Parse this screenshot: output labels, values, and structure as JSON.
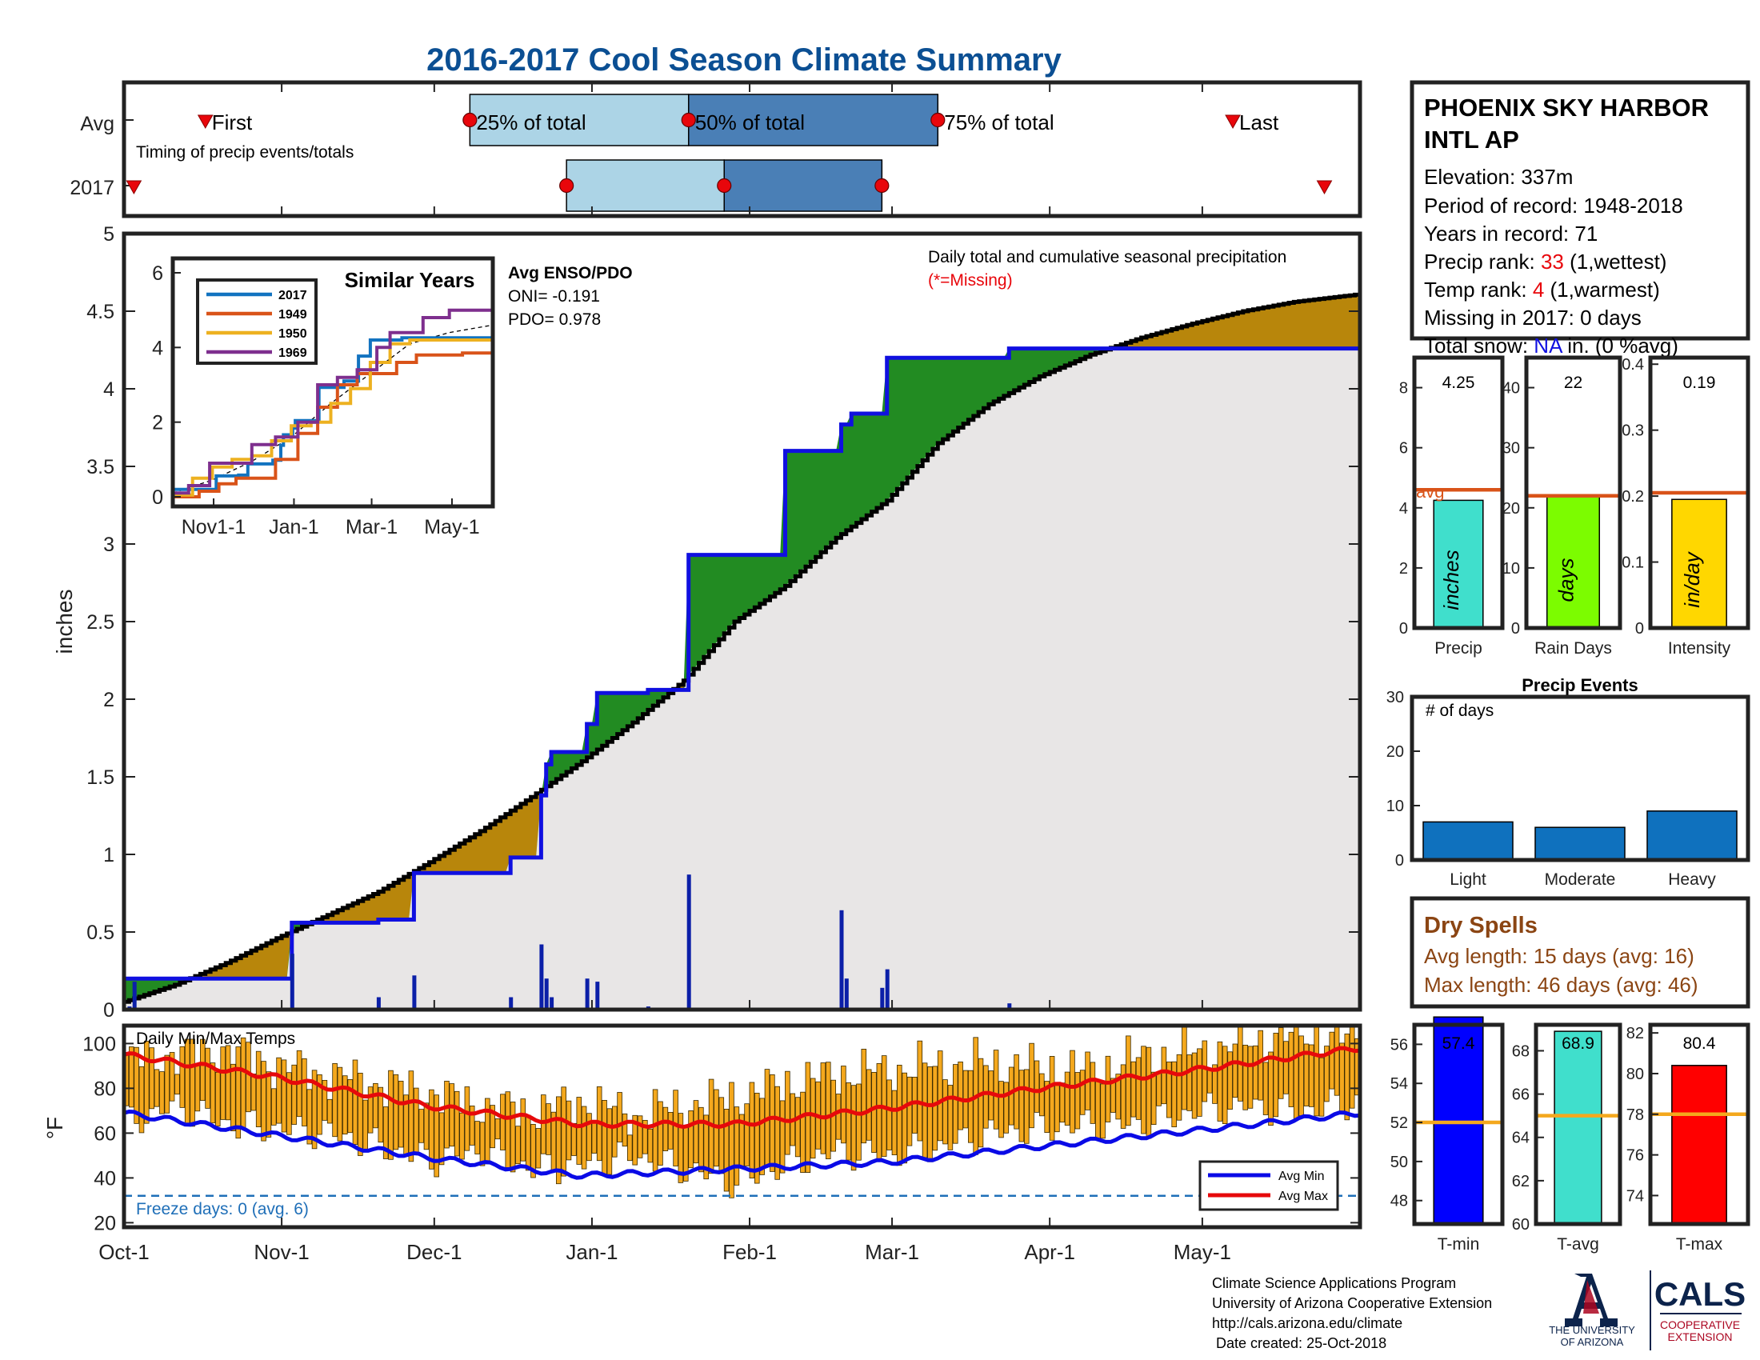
{
  "page": {
    "title": "2016-2017 Cool Season Climate Summary",
    "title_color": "#0b4f93"
  },
  "months": [
    "Oct-1",
    "Nov-1",
    "Dec-1",
    "Jan-1",
    "Feb-1",
    "Mar-1",
    "Apr-1",
    "May-1"
  ],
  "timing": {
    "note": "Timing of precip events/totals",
    "rows": [
      "Avg",
      "2017"
    ],
    "avg_labels": {
      "first": "First",
      "p25": "25% of total",
      "p50": "50% of total",
      "p75": "75% of total",
      "last": "Last"
    },
    "avg_days": {
      "first": 16,
      "p25": 68,
      "p50": 111,
      "p75": 160,
      "last": 218
    },
    "y2017_days": {
      "first": 1,
      "p25": 87,
      "p50": 118,
      "p75": 149,
      "last": 236
    },
    "colors": {
      "light": "#acd4e6",
      "dark": "#4a7fb6",
      "dot": "#e8060b"
    }
  },
  "chart_data": [
    {
      "type": "area",
      "name": "cumulative precipitation",
      "title": "Daily total and cumulative seasonal precipitation",
      "subtitle": "(*=Missing)",
      "ylabel": "inches",
      "ylim": [
        0,
        5
      ],
      "yticks": [
        0,
        0.5,
        1,
        1.5,
        2,
        2.5,
        3,
        3.5,
        4,
        4.5,
        5
      ],
      "xlim_days": [
        0,
        243
      ],
      "avg_cumulative": {
        "x_days": [
          0,
          10,
          20,
          30,
          40,
          50,
          60,
          70,
          80,
          90,
          100,
          110,
          120,
          130,
          140,
          150,
          160,
          170,
          180,
          190,
          200,
          210,
          220,
          230,
          243
        ],
        "values": [
          0.05,
          0.16,
          0.3,
          0.46,
          0.61,
          0.76,
          0.95,
          1.15,
          1.37,
          1.6,
          1.85,
          2.12,
          2.5,
          2.73,
          3.04,
          3.28,
          3.65,
          3.9,
          4.08,
          4.22,
          4.33,
          4.42,
          4.5,
          4.56,
          4.61
        ]
      },
      "cum_2017": {
        "x_days": [
          0,
          33,
          33,
          50,
          50,
          57,
          57,
          76,
          76,
          82,
          82,
          83,
          83,
          84,
          84,
          91,
          91,
          93,
          93,
          103,
          103,
          111,
          111,
          113,
          113,
          130,
          130,
          141,
          141,
          142,
          142,
          143,
          143,
          150,
          150,
          174,
          174,
          243
        ],
        "values": [
          0.2,
          0.2,
          0.56,
          0.56,
          0.58,
          0.58,
          0.88,
          0.88,
          0.98,
          0.98,
          1.38,
          1.38,
          1.58,
          1.58,
          1.66,
          1.66,
          1.84,
          1.84,
          2.04,
          2.04,
          2.06,
          2.06,
          2.93,
          2.93,
          2.93,
          2.93,
          3.6,
          3.6,
          3.77,
          3.77,
          3.77,
          3.77,
          3.84,
          3.84,
          4.2,
          4.2,
          4.26,
          4.26
        ]
      },
      "daily_bars": {
        "x_days": [
          1,
          2,
          33,
          50,
          57,
          76,
          82,
          83,
          84,
          91,
          93,
          103,
          111,
          141,
          142,
          149,
          150,
          174
        ],
        "values": [
          0.02,
          0.18,
          0.36,
          0.08,
          0.22,
          0.08,
          0.42,
          0.2,
          0.08,
          0.2,
          0.18,
          0.02,
          0.87,
          0.64,
          0.2,
          0.14,
          0.26,
          0.04
        ]
      },
      "colors": {
        "above_avg": "#228b22",
        "below_avg": "#b8860b",
        "fill": "#e8e6e6",
        "line_2017": "#1010e0",
        "line_avg": "#000000"
      }
    },
    {
      "type": "line",
      "name": "similar years inset",
      "title": "Similar Years",
      "ylim": [
        0,
        6
      ],
      "yticks": [
        0,
        2,
        4,
        6
      ],
      "xticks": [
        "Nov1-1",
        "Jan-1",
        "Mar-1",
        "May-1"
      ],
      "series": [
        {
          "name": "2017",
          "color": "#1273c0",
          "x_days": [
            0,
            10,
            20,
            33,
            50,
            57,
            76,
            82,
            84,
            91,
            93,
            111,
            130,
            141,
            150,
            174,
            243
          ],
          "values": [
            0.2,
            0.2,
            0.2,
            0.56,
            0.58,
            0.88,
            0.98,
            1.38,
            1.66,
            1.84,
            2.04,
            2.93,
            3.1,
            3.77,
            4.2,
            4.26,
            4.26
          ]
        },
        {
          "name": "1949",
          "color": "#d95319",
          "x_days": [
            0,
            20,
            35,
            48,
            60,
            78,
            95,
            110,
            125,
            140,
            155,
            170,
            185,
            200,
            220,
            243
          ],
          "values": [
            0,
            0.15,
            0.35,
            0.5,
            0.5,
            1.0,
            1.7,
            2.4,
            3.0,
            3.3,
            3.3,
            3.6,
            3.8,
            3.8,
            3.85,
            3.95
          ]
        },
        {
          "name": "1950",
          "color": "#edb120",
          "x_days": [
            0,
            15,
            30,
            45,
            60,
            75,
            90,
            105,
            120,
            135,
            150,
            165,
            180,
            200,
            220,
            243
          ],
          "values": [
            0.05,
            0.5,
            0.8,
            1.0,
            1.1,
            1.5,
            1.9,
            2.0,
            2.5,
            2.9,
            3.6,
            4.1,
            4.2,
            4.2,
            4.2,
            4.4
          ]
        },
        {
          "name": "1969",
          "color": "#7e2f8e",
          "x_days": [
            0,
            12,
            28,
            45,
            60,
            78,
            95,
            110,
            125,
            140,
            155,
            165,
            175,
            190,
            210,
            243
          ],
          "values": [
            0.1,
            0.3,
            0.9,
            0.9,
            1.4,
            1.6,
            2.0,
            3.0,
            3.2,
            3.4,
            4.0,
            4.4,
            4.4,
            4.8,
            5.0,
            5.3
          ]
        }
      ],
      "avg_dash": {
        "x_days": [
          0,
          30,
          60,
          90,
          120,
          150,
          180,
          210,
          243
        ],
        "values": [
          0.1,
          0.45,
          0.95,
          1.6,
          2.5,
          3.3,
          4.1,
          4.4,
          4.6
        ]
      },
      "enso": {
        "label": "Avg ENSO/PDO",
        "oni": "ONI= -0.191",
        "pdo": "PDO= 0.978"
      }
    },
    {
      "type": "bar",
      "name": "daily min/max temperature",
      "title": "Daily Min/Max Temps",
      "ylabel": "°F",
      "ylim": [
        18,
        108
      ],
      "yticks": [
        20,
        40,
        60,
        80,
        100
      ],
      "avg_min_x_days": [
        0,
        30,
        60,
        90,
        120,
        150,
        180,
        210,
        243
      ],
      "avg_min": [
        69,
        59,
        49,
        41,
        44,
        47,
        54,
        61,
        69
      ],
      "avg_max_x_days": [
        0,
        30,
        60,
        90,
        120,
        150,
        180,
        210,
        243
      ],
      "avg_max": [
        95,
        85,
        72,
        64,
        64,
        71,
        80,
        88,
        98
      ],
      "daily_max_x_days": [
        0,
        20,
        30,
        40,
        60,
        70,
        80,
        90,
        100,
        110,
        120,
        130,
        140,
        150,
        160,
        170,
        180,
        190,
        200,
        210,
        220,
        230,
        243
      ],
      "daily_max": [
        93,
        97,
        90,
        86,
        78,
        72,
        70,
        74,
        68,
        72,
        76,
        82,
        86,
        88,
        90,
        91,
        89,
        88,
        94,
        96,
        100,
        104,
        102
      ],
      "daily_min_x_days": [
        0,
        10,
        20,
        30,
        40,
        50,
        60,
        70,
        80,
        90,
        100,
        110,
        120,
        130,
        140,
        150,
        160,
        170,
        180,
        190,
        200,
        210,
        220,
        230,
        243
      ],
      "daily_min": [
        65,
        72,
        64,
        62,
        60,
        54,
        48,
        52,
        44,
        46,
        50,
        44,
        38,
        46,
        52,
        50,
        54,
        60,
        62,
        64,
        64,
        70,
        72,
        70,
        74
      ],
      "freeze_line": 32,
      "freeze_label": "Freeze days: 0 (avg. 6)",
      "legend": [
        "Avg Min",
        "Avg Max"
      ],
      "colors": {
        "bar": "#f4a81d",
        "min": "#0a0ae6",
        "max": "#e6090b",
        "freeze": "#1f6fb8"
      }
    },
    {
      "type": "bar",
      "name": "precip totals",
      "panels": [
        {
          "category": "Precip",
          "value": 4.25,
          "value_label": "4.25",
          "unit": "inches",
          "avg": 4.6,
          "avg_label": "avg",
          "ylim": [
            0,
            9
          ],
          "yticks": [
            0,
            2,
            4,
            6,
            8
          ],
          "color": "#40dfcc"
        },
        {
          "category": "Rain Days",
          "value": 22,
          "value_label": "22",
          "unit": "days",
          "avg": 22,
          "ylim": [
            0,
            45
          ],
          "yticks": [
            0,
            10,
            20,
            30,
            40
          ],
          "color": "#7cfc00"
        },
        {
          "category": "Intensity",
          "value": 0.195,
          "value_label": "0.19",
          "unit": "in/day",
          "avg": 0.205,
          "ylim": [
            0,
            0.41
          ],
          "yticks": [
            0,
            0.1,
            0.2,
            0.3,
            0.4
          ],
          "color": "#ffd700"
        }
      ],
      "avg_line_color": "#d95319"
    },
    {
      "type": "bar",
      "name": "precip events",
      "title": "Precip Events",
      "ylabel": "# of days",
      "categories": [
        "Light",
        "Moderate",
        "Heavy"
      ],
      "values": [
        7,
        6,
        9
      ],
      "ylim": [
        0,
        30
      ],
      "yticks": [
        0,
        10,
        20,
        30
      ],
      "color": "#0f71be"
    },
    {
      "type": "bar",
      "name": "seasonal temperatures",
      "panels": [
        {
          "category": "T-min",
          "value": 57.4,
          "value_label": "57.4",
          "avg": 52,
          "ylim": [
            46.8,
            57
          ],
          "yticks": [
            48,
            50,
            52,
            54,
            56
          ],
          "color": "#0000ff"
        },
        {
          "category": "T-avg",
          "value": 68.9,
          "value_label": "68.9",
          "avg": 65,
          "ylim": [
            60,
            69.2
          ],
          "yticks": [
            60,
            62,
            64,
            66,
            68
          ],
          "color": "#40dfcc"
        },
        {
          "category": "T-max",
          "value": 80.4,
          "value_label": "80.4",
          "avg": 78,
          "ylim": [
            72.6,
            82.4
          ],
          "yticks": [
            74,
            76,
            78,
            80,
            82
          ],
          "color": "#ff0000"
        }
      ],
      "avg_line_color": "#f4a81d"
    }
  ],
  "station": {
    "name_line1": "PHOENIX SKY HARBOR",
    "name_line2": "INTL AP",
    "elevation": "Elevation: 337m",
    "period": "Period of record: 1948-2018",
    "years": "Years in record: 71",
    "precip_rank_label": "Precip rank: ",
    "precip_rank_value": "33",
    "precip_rank_suffix": " (1,wettest)",
    "temp_rank_label": "Temp rank: ",
    "temp_rank_value": "4",
    "temp_rank_suffix": " (1,warmest)",
    "missing": "Missing in 2017: 0 days",
    "snow_label": "Total snow: ",
    "snow_value": "NA",
    "snow_suffix": " in. (0 %avg)",
    "rank_color": "#e8060b",
    "snow_color": "#1010e0"
  },
  "dry_spells": {
    "title": "Dry Spells",
    "avg": "Avg length: 15 days (avg: 16)",
    "max": "Max length: 46 days (avg: 46)",
    "color": "#8b4513"
  },
  "footer": {
    "line1": "Climate Science Applications Program",
    "line2": "University of Arizona Cooperative Extension",
    "line3": "http://cals.arizona.edu/climate",
    "line4": " Date created: 25-Oct-2018",
    "logo_ua_line1": "THE UNIVERSITY",
    "logo_ua_line2": "OF ARIZONA",
    "logo_cals": "CALS",
    "logo_coop1": "COOPERATIVE",
    "logo_coop2": "EXTENSION",
    "navy": "#0c234b",
    "red": "#ab0520"
  }
}
